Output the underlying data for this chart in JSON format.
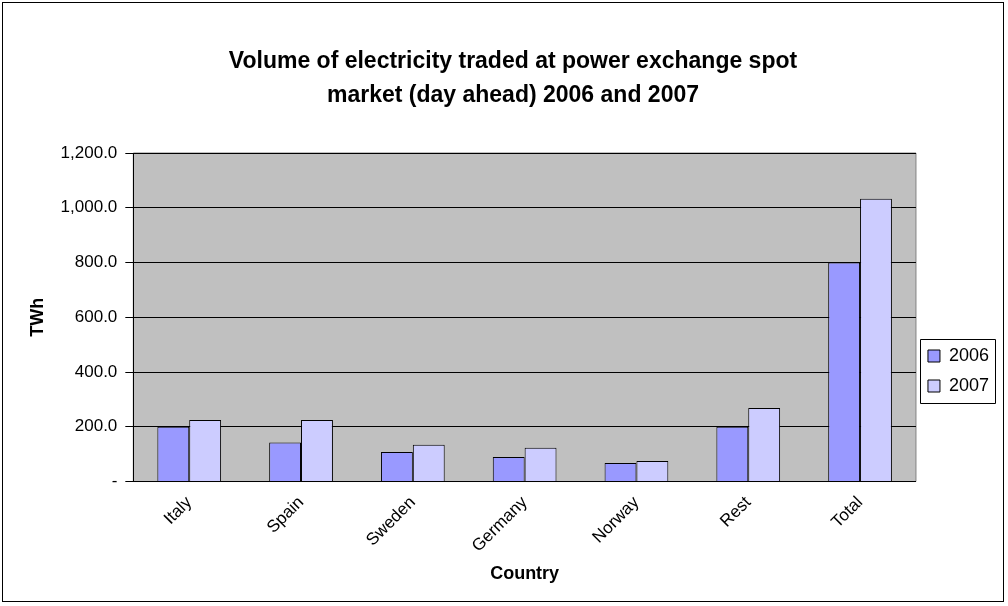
{
  "chart_data": {
    "type": "bar",
    "title": "Volume of electricity traded at power exchange spot market (day ahead) 2006 and 2007",
    "xlabel": "Country",
    "ylabel": "TWh",
    "categories": [
      "Italy",
      "Spain",
      "Sweden",
      "Germany",
      "Norway",
      "Rest",
      "Total"
    ],
    "series": [
      {
        "name": "2006",
        "color": "#9999ff",
        "values": [
          200,
          143,
          108,
          90,
          68,
          200,
          800
        ]
      },
      {
        "name": "2007",
        "color": "#ccccff",
        "values": [
          225,
          225,
          134,
          123,
          75,
          269,
          1033
        ]
      }
    ],
    "ylim": [
      0,
      1200
    ],
    "yticks": [
      {
        "value": 0,
        "label": "-"
      },
      {
        "value": 200,
        "label": "200.0"
      },
      {
        "value": 400,
        "label": "400.0"
      },
      {
        "value": 600,
        "label": "600.0"
      },
      {
        "value": 800,
        "label": "800.0"
      },
      {
        "value": 1000,
        "label": "1,000.0"
      },
      {
        "value": 1200,
        "label": "1,200.0"
      }
    ],
    "grid": "y",
    "legend": "right"
  }
}
